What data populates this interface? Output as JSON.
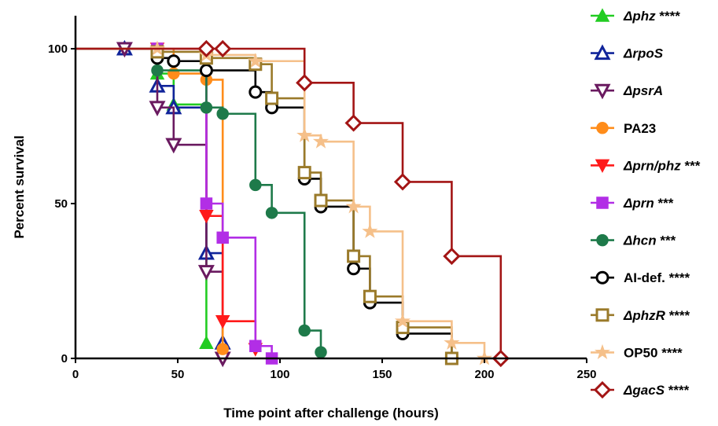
{
  "chart_data": {
    "type": "line",
    "subtype": "kaplan-meier step survival",
    "xlabel": "Time point after challenge (hours)",
    "ylabel": "Percent survival",
    "xlim": [
      0,
      250
    ],
    "ylim": [
      0,
      100
    ],
    "x_ticks": [
      "0",
      "50",
      "100",
      "150",
      "200",
      "250"
    ],
    "y_ticks": [
      "0",
      "50",
      "100"
    ],
    "grid": false,
    "legend_position": "right",
    "series": [
      {
        "name": "Δphz",
        "suffix": " ****",
        "italic": true,
        "color": "#22cc22",
        "marker": "triangle-up",
        "x": [
          0,
          24,
          40,
          48,
          64
        ],
        "y": [
          100,
          100,
          92,
          82,
          5
        ],
        "end_x": 64
      },
      {
        "name": "ΔrpoS",
        "suffix": "",
        "italic": true,
        "color": "#10249a",
        "marker": "triangle-up-open",
        "x": [
          0,
          24,
          40,
          48,
          64,
          72
        ],
        "y": [
          100,
          100,
          88,
          81,
          34,
          5
        ],
        "end_x": 72
      },
      {
        "name": "ΔpsrA",
        "suffix": "",
        "italic": true,
        "color": "#6a1a60",
        "marker": "triangle-down-open",
        "x": [
          0,
          24,
          40,
          48,
          64,
          72
        ],
        "y": [
          100,
          100,
          81,
          69,
          28,
          0
        ],
        "end_x": 72
      },
      {
        "name": "PA23",
        "suffix": "",
        "italic": false,
        "color": "#ff8c1a",
        "marker": "circle",
        "x": [
          0,
          40,
          48,
          64,
          72
        ],
        "y": [
          100,
          100,
          92,
          90,
          3
        ],
        "end_x": 72
      },
      {
        "name": "Δprn/phz",
        "suffix": " ***",
        "italic": true,
        "color": "#ff1a1a",
        "marker": "triangle-down",
        "x": [
          0,
          40,
          64,
          72,
          88
        ],
        "y": [
          100,
          100,
          46,
          12,
          3
        ],
        "end_x": 88
      },
      {
        "name": "Δprn",
        "suffix": " ***",
        "italic": true,
        "color": "#b22ee6",
        "marker": "square",
        "x": [
          0,
          40,
          64,
          72,
          88,
          96
        ],
        "y": [
          100,
          100,
          50,
          39,
          4,
          0
        ],
        "end_x": 96
      },
      {
        "name": "Δhcn",
        "suffix": " ***",
        "italic": true,
        "color": "#1e7a4a",
        "marker": "circle",
        "x": [
          0,
          40,
          64,
          72,
          88,
          96,
          112,
          120
        ],
        "y": [
          100,
          93,
          81,
          79,
          56,
          47,
          9,
          2
        ],
        "end_x": 120
      },
      {
        "name": "AI-def.",
        "suffix": " ****",
        "italic": false,
        "color": "#000000",
        "marker": "circle-open",
        "x": [
          0,
          40,
          48,
          64,
          88,
          96,
          112,
          120,
          136,
          144,
          160,
          184
        ],
        "y": [
          100,
          97,
          96,
          93,
          86,
          81,
          58,
          49,
          29,
          18,
          8,
          0
        ],
        "end_x": 184
      },
      {
        "name": "ΔphzR",
        "suffix": " ****",
        "italic": true,
        "color": "#9a7a2a",
        "marker": "square-open",
        "x": [
          0,
          40,
          64,
          88,
          96,
          112,
          120,
          136,
          144,
          160,
          184
        ],
        "y": [
          100,
          99,
          97,
          95,
          84,
          60,
          51,
          33,
          20,
          10,
          0
        ],
        "end_x": 184
      },
      {
        "name": "OP50",
        "suffix": " ****",
        "italic": false,
        "color": "#f5c08a",
        "marker": "star",
        "x": [
          0,
          40,
          64,
          88,
          112,
          120,
          136,
          144,
          160,
          184,
          200
        ],
        "y": [
          100,
          100,
          98,
          96,
          72,
          70,
          49,
          41,
          12,
          5,
          0
        ],
        "end_x": 200
      },
      {
        "name": "ΔgacS",
        "suffix": " ****",
        "italic": true,
        "color": "#a31515",
        "marker": "diamond-open",
        "x": [
          0,
          64,
          72,
          112,
          136,
          160,
          184,
          208
        ],
        "y": [
          100,
          100,
          100,
          89,
          76,
          57,
          33,
          0
        ],
        "end_x": 208
      }
    ]
  }
}
